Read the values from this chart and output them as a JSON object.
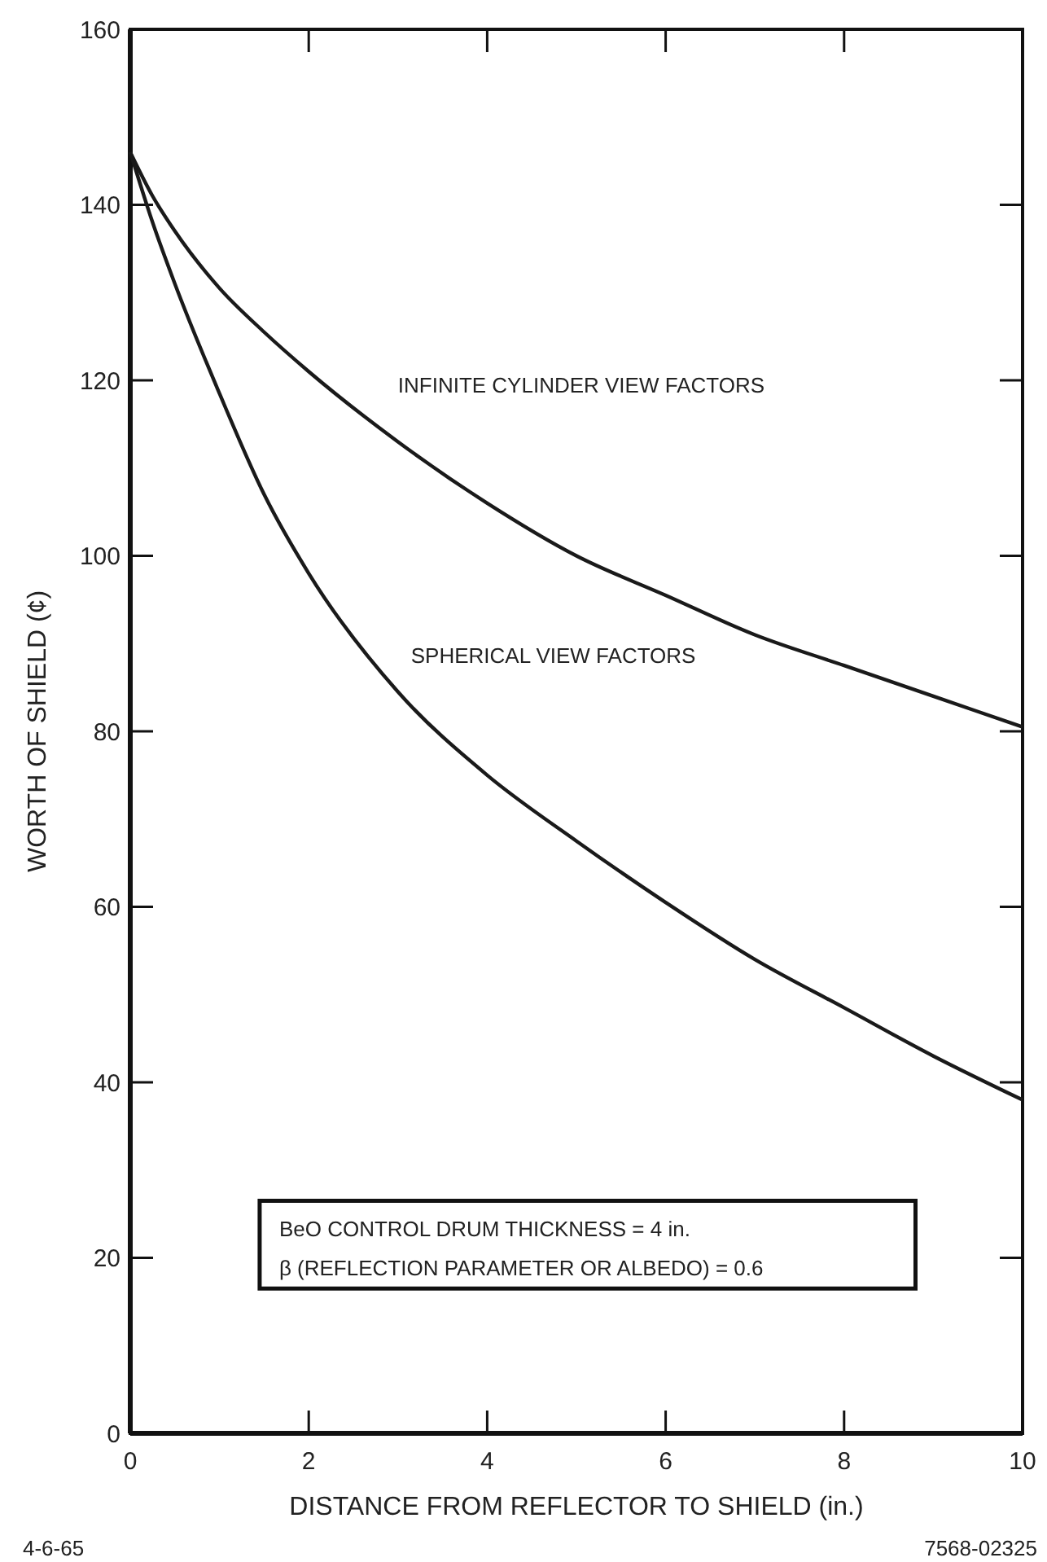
{
  "chart_data": {
    "type": "line",
    "xlabel": "DISTANCE FROM REFLECTOR TO SHIELD (in.)",
    "ylabel": "WORTH OF SHIELD (¢)",
    "x": [
      0,
      0.25,
      0.5,
      1,
      1.5,
      2,
      3,
      4,
      5,
      6,
      7,
      8,
      9,
      10
    ],
    "series": [
      {
        "name": "INFINITE CYLINDER VIEW FACTORS",
        "color": "#1a1a1a",
        "values": [
          146,
          141,
          137,
          130.5,
          125.5,
          121,
          113,
          106,
          100,
          95.5,
          91,
          87.5,
          84,
          80.5
        ]
      },
      {
        "name": "SPHERICAL VIEW FACTORS",
        "color": "#1a1a1a",
        "values": [
          146,
          138,
          131,
          118.5,
          107,
          98,
          84.5,
          75,
          67.5,
          60.5,
          54,
          48.5,
          43,
          38
        ]
      }
    ],
    "xlim": [
      0,
      10
    ],
    "xticks": [
      0,
      2,
      4,
      6,
      8,
      10
    ],
    "ylim": [
      0,
      160
    ],
    "yticks": [
      0,
      20,
      40,
      60,
      80,
      100,
      120,
      140,
      160
    ],
    "grid": false,
    "marker": "none",
    "line_style": "solid",
    "annotations": [
      "BeO CONTROL DRUM THICKNESS = 4 in.",
      "β (REFLECTION PARAMETER OR ALBEDO) = 0.6",
      "4-6-65",
      "7568-02325"
    ]
  }
}
